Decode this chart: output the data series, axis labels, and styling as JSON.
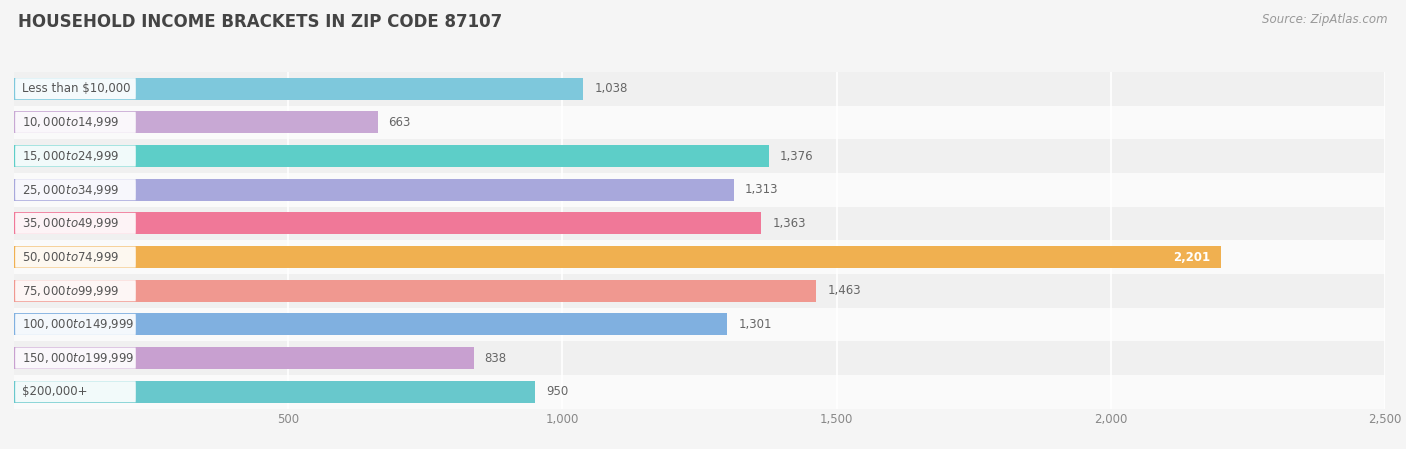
{
  "title": "HOUSEHOLD INCOME BRACKETS IN ZIP CODE 87107",
  "source": "Source: ZipAtlas.com",
  "categories": [
    "Less than $10,000",
    "$10,000 to $14,999",
    "$15,000 to $24,999",
    "$25,000 to $34,999",
    "$35,000 to $49,999",
    "$50,000 to $74,999",
    "$75,000 to $99,999",
    "$100,000 to $149,999",
    "$150,000 to $199,999",
    "$200,000+"
  ],
  "values": [
    1038,
    663,
    1376,
    1313,
    1363,
    2201,
    1463,
    1301,
    838,
    950
  ],
  "bar_colors": [
    "#7EC8DC",
    "#C8A8D4",
    "#5DCEC8",
    "#A8A8DC",
    "#F07898",
    "#F0B050",
    "#F09890",
    "#80B0E0",
    "#C8A0D0",
    "#68C8CC"
  ],
  "bar_height": 0.65,
  "xlim": [
    0,
    2500
  ],
  "xticks": [
    500,
    1000,
    1500,
    2000,
    2500
  ],
  "xtick_labels": [
    "500",
    "1,000",
    "1,500",
    "2,000",
    "2,500"
  ],
  "bg_color": "#f5f5f5",
  "row_bg_odd": "#f0f0f0",
  "row_bg_even": "#fafafa",
  "title_fontsize": 12,
  "label_fontsize": 8.5,
  "value_fontsize": 8.5,
  "source_fontsize": 8.5,
  "title_color": "#444444",
  "label_color": "#555555",
  "value_color_default": "#666666",
  "value_color_max": "#ffffff"
}
